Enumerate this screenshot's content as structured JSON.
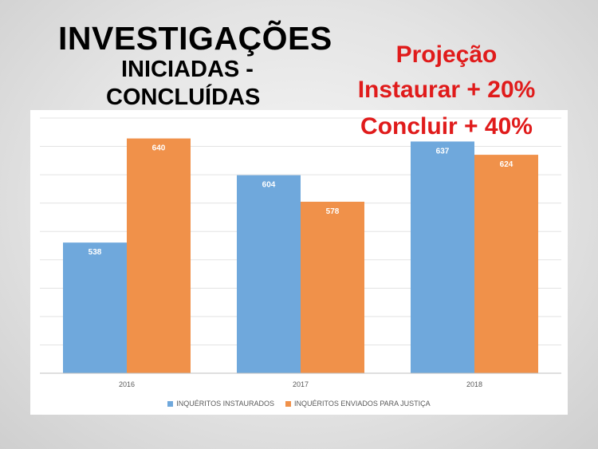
{
  "slide": {
    "title_line1": "INVESTIGAÇÕES",
    "title_line2": "INICIADAS -",
    "title_line3": "CONCLUÍDAS",
    "projection_line1": "Projeção",
    "projection_line2": "Instaurar + 20%",
    "projection_line3": "Concluir + 40%"
  },
  "chart_data": {
    "type": "bar",
    "categories": [
      "2016",
      "2017",
      "2018"
    ],
    "series": [
      {
        "name": "INQUÉRITOS INSTAURADOS",
        "values": [
          538,
          604,
          637
        ],
        "color": "#6fa8dc"
      },
      {
        "name": "INQUÉRITOS ENVIADOS PARA JUSTIÇA",
        "values": [
          640,
          578,
          624
        ],
        "color": "#f0914a"
      }
    ],
    "ylim": [
      410,
      660
    ],
    "grid": true,
    "legend": "bottom",
    "data_labels": true
  }
}
